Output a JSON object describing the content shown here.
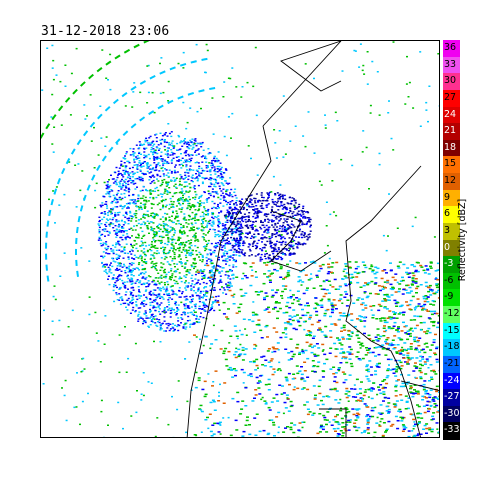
{
  "timestamp": "31-12-2018 23:06",
  "colorbar": {
    "label": "Reflectivity [dBZ]",
    "levels": [
      {
        "value": "36",
        "color": "#f000f0"
      },
      {
        "value": "33",
        "color": "#f050f0"
      },
      {
        "value": "30",
        "color": "#ff3090"
      },
      {
        "value": "27",
        "color": "#ff0000"
      },
      {
        "value": "24",
        "color": "#e00000"
      },
      {
        "value": "21",
        "color": "#b40000"
      },
      {
        "value": "18",
        "color": "#800000"
      },
      {
        "value": "15",
        "color": "#ff7000"
      },
      {
        "value": "12",
        "color": "#e06000"
      },
      {
        "value": "9",
        "color": "#ffb000"
      },
      {
        "value": "6",
        "color": "#ffff00"
      },
      {
        "value": "3",
        "color": "#c0c000"
      },
      {
        "value": "0",
        "color": "#808000"
      },
      {
        "value": "-3",
        "color": "#00a000"
      },
      {
        "value": "-6",
        "color": "#00c000"
      },
      {
        "value": "-9",
        "color": "#00e000"
      },
      {
        "value": "-12",
        "color": "#60ff60"
      },
      {
        "value": "-15",
        "color": "#00ffff"
      },
      {
        "value": "-18",
        "color": "#00c8ff"
      },
      {
        "value": "-21",
        "color": "#0064ff"
      },
      {
        "value": "-24",
        "color": "#0000ff"
      },
      {
        "value": "-27",
        "color": "#0000a0"
      },
      {
        "value": "-30",
        "color": "#000060"
      },
      {
        "value": "-33",
        "color": "#000000"
      }
    ]
  },
  "colors": {
    "weak": "#0000ff",
    "light": "#00c8ff",
    "moderate": "#00c000",
    "strong": "#e06000",
    "intense": "#ff0000",
    "border": "#000000"
  }
}
